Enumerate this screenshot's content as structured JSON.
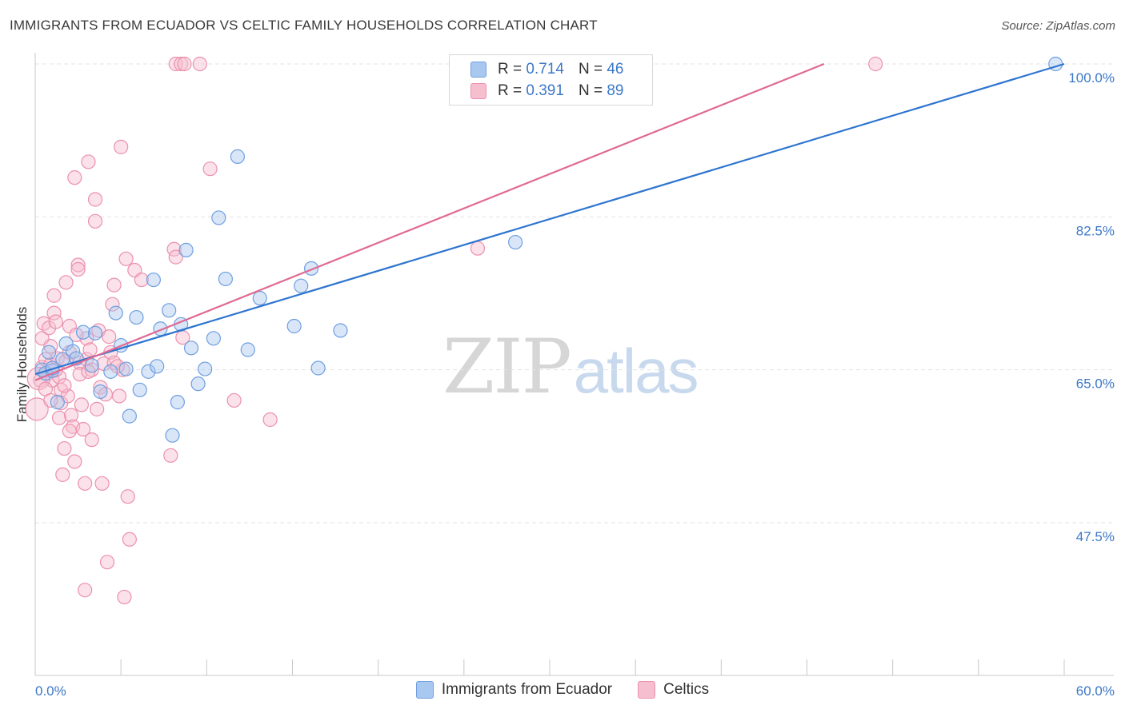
{
  "header": {
    "title": "IMMIGRANTS FROM ECUADOR VS CELTIC FAMILY HOUSEHOLDS CORRELATION CHART",
    "source": "Source: ZipAtlas.com"
  },
  "watermark": {
    "part1": "ZIP",
    "part2": "atlas"
  },
  "legend": {
    "series1": {
      "r_label": "R =",
      "r_value": "0.714",
      "n_label": "N =",
      "n_value": "46"
    },
    "series2": {
      "r_label": "R =",
      "r_value": "0.391",
      "n_label": "N =",
      "n_value": "89"
    }
  },
  "colors": {
    "blue_fill": "#a9c8f0",
    "blue_stroke": "#6f9fe0",
    "blue_line": "#2e75d0",
    "pink_fill": "#f6bfd0",
    "pink_stroke": "#ec90ad",
    "pink_line": "#e06a92",
    "tick_text": "#3c78c8",
    "grid": "#e3e3e3"
  },
  "chart_data": {
    "type": "scatter",
    "title": "IMMIGRANTS FROM ECUADOR VS CELTIC FAMILY HOUSEHOLDS CORRELATION CHART",
    "xlabel": "",
    "ylabel": "Family Households",
    "xlim": [
      0,
      60
    ],
    "ylim": [
      30,
      102
    ],
    "x_tick_labels": [
      "0.0%",
      "60.0%"
    ],
    "y_ticks": [
      47.5,
      65.0,
      82.5,
      100.0
    ],
    "y_tick_labels": [
      "47.5%",
      "65.0%",
      "82.5%",
      "100.0%"
    ],
    "legend_position": "top-center",
    "series": [
      {
        "name": "Immigrants from Ecuador",
        "color": "blue",
        "R": 0.714,
        "N": 46,
        "trendline": [
          [
            0,
            64.5
          ],
          [
            60,
            100.0
          ]
        ],
        "points": [
          [
            0.4,
            65.0
          ],
          [
            0.6,
            64.6
          ],
          [
            0.8,
            67.0
          ],
          [
            1.0,
            64.9
          ],
          [
            1.3,
            61.3
          ],
          [
            1.6,
            66.2
          ],
          [
            1.8,
            68.0
          ],
          [
            2.2,
            67.1
          ],
          [
            2.4,
            66.3
          ],
          [
            2.8,
            69.3
          ],
          [
            3.3,
            65.5
          ],
          [
            3.8,
            62.5
          ],
          [
            4.4,
            64.8
          ],
          [
            4.7,
            71.5
          ],
          [
            5.0,
            67.8
          ],
          [
            5.3,
            65.1
          ],
          [
            5.5,
            59.7
          ],
          [
            5.9,
            71.0
          ],
          [
            6.1,
            62.7
          ],
          [
            6.6,
            64.8
          ],
          [
            6.9,
            75.3
          ],
          [
            7.1,
            65.4
          ],
          [
            7.3,
            69.7
          ],
          [
            7.8,
            71.8
          ],
          [
            8.0,
            57.5
          ],
          [
            8.3,
            61.3
          ],
          [
            8.5,
            70.2
          ],
          [
            8.8,
            78.7
          ],
          [
            9.1,
            67.5
          ],
          [
            9.5,
            63.4
          ],
          [
            9.9,
            65.1
          ],
          [
            10.4,
            68.6
          ],
          [
            10.7,
            82.4
          ],
          [
            11.1,
            75.4
          ],
          [
            11.8,
            89.4
          ],
          [
            12.4,
            67.3
          ],
          [
            13.1,
            73.2
          ],
          [
            15.1,
            70.0
          ],
          [
            15.5,
            74.6
          ],
          [
            16.1,
            76.6
          ],
          [
            16.5,
            65.2
          ],
          [
            17.8,
            69.5
          ],
          [
            28.0,
            79.6
          ],
          [
            59.5,
            100.0
          ],
          [
            1.0,
            65.2
          ],
          [
            3.5,
            69.2
          ]
        ]
      },
      {
        "name": "Celtics",
        "color": "pink",
        "R": 0.391,
        "N": 89,
        "trendline": [
          [
            0,
            63.8
          ],
          [
            46,
            100.0
          ]
        ],
        "points": [
          [
            0.1,
            60.5
          ],
          [
            0.3,
            63.8
          ],
          [
            0.4,
            65.3
          ],
          [
            0.4,
            68.6
          ],
          [
            0.5,
            70.3
          ],
          [
            0.6,
            66.2
          ],
          [
            0.7,
            64.5
          ],
          [
            0.8,
            69.8
          ],
          [
            0.9,
            67.7
          ],
          [
            0.9,
            65.6
          ],
          [
            1.0,
            63.8
          ],
          [
            1.1,
            73.5
          ],
          [
            1.1,
            71.5
          ],
          [
            1.2,
            70.5
          ],
          [
            1.3,
            66.3
          ],
          [
            1.4,
            64.2
          ],
          [
            1.4,
            59.5
          ],
          [
            1.5,
            62.7
          ],
          [
            1.5,
            61.2
          ],
          [
            1.6,
            53.0
          ],
          [
            1.7,
            56.0
          ],
          [
            1.8,
            75.0
          ],
          [
            1.8,
            66.0
          ],
          [
            1.9,
            62.0
          ],
          [
            2.0,
            70.0
          ],
          [
            2.0,
            67.0
          ],
          [
            2.1,
            59.8
          ],
          [
            2.2,
            58.5
          ],
          [
            2.3,
            54.5
          ],
          [
            2.3,
            87.0
          ],
          [
            2.5,
            77.0
          ],
          [
            2.5,
            76.5
          ],
          [
            2.6,
            65.8
          ],
          [
            2.6,
            64.5
          ],
          [
            2.7,
            61.0
          ],
          [
            2.8,
            58.2
          ],
          [
            2.9,
            52.0
          ],
          [
            2.9,
            39.8
          ],
          [
            3.0,
            68.6
          ],
          [
            3.0,
            66.2
          ],
          [
            3.1,
            88.8
          ],
          [
            3.2,
            67.3
          ],
          [
            3.3,
            65.0
          ],
          [
            3.3,
            57.0
          ],
          [
            3.5,
            84.5
          ],
          [
            3.5,
            82.0
          ],
          [
            3.7,
            69.5
          ],
          [
            3.8,
            63.0
          ],
          [
            3.9,
            52.0
          ],
          [
            4.0,
            65.7
          ],
          [
            4.1,
            62.2
          ],
          [
            4.2,
            43.0
          ],
          [
            4.3,
            68.8
          ],
          [
            4.4,
            67.0
          ],
          [
            4.5,
            72.5
          ],
          [
            4.6,
            74.7
          ],
          [
            4.6,
            65.8
          ],
          [
            4.9,
            62.0
          ],
          [
            5.0,
            90.5
          ],
          [
            5.1,
            65.0
          ],
          [
            5.2,
            39.0
          ],
          [
            5.3,
            77.7
          ],
          [
            5.4,
            50.5
          ],
          [
            5.5,
            45.6
          ],
          [
            5.8,
            76.4
          ],
          [
            6.2,
            75.3
          ],
          [
            7.9,
            55.2
          ],
          [
            8.1,
            78.8
          ],
          [
            8.2,
            77.9
          ],
          [
            8.6,
            68.7
          ],
          [
            8.2,
            100.0
          ],
          [
            8.5,
            100.0
          ],
          [
            8.7,
            100.0
          ],
          [
            9.6,
            100.0
          ],
          [
            10.2,
            88.0
          ],
          [
            11.6,
            61.5
          ],
          [
            13.7,
            59.3
          ],
          [
            25.8,
            78.9
          ],
          [
            49.0,
            100.0
          ],
          [
            0.2,
            64.0
          ],
          [
            0.6,
            62.8
          ],
          [
            1.2,
            65.0
          ],
          [
            2.4,
            69.0
          ],
          [
            3.6,
            60.5
          ],
          [
            4.8,
            65.4
          ],
          [
            1.7,
            63.2
          ],
          [
            0.9,
            61.5
          ],
          [
            2.0,
            58.0
          ],
          [
            3.1,
            64.8
          ]
        ]
      }
    ]
  },
  "bottom_legend": {
    "label1": "Immigrants from Ecuador",
    "label2": "Celtics"
  }
}
